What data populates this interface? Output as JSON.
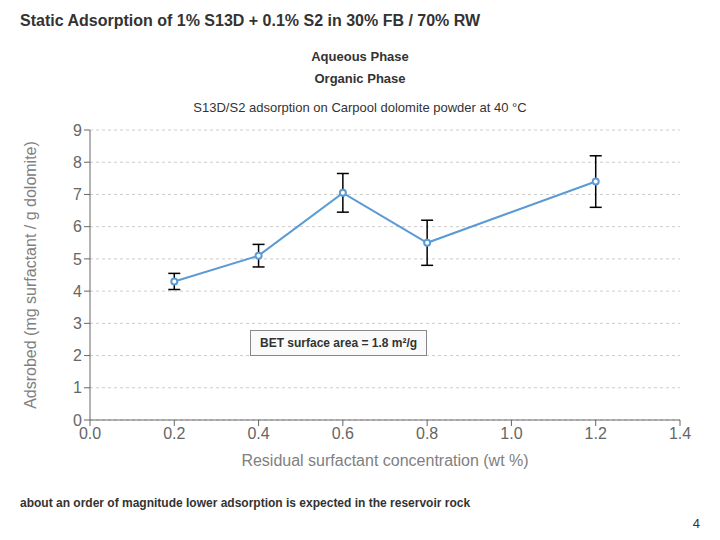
{
  "chart_data": {
    "type": "line",
    "title": "Static Adsorption of 1% S13D + 0.1% S2 in 30% FB / 70% RW",
    "subtitle": "S13D/S2 adsorption on Carpool dolomite powder at 40 °C",
    "x_label": "Residual surfactant concentration (wt %)",
    "y_label": "Adsrobed (mg surfactant / g dolomite)",
    "x": [
      0.2,
      0.4,
      0.6,
      0.8,
      1.2
    ],
    "series": [
      {
        "name": "S13D/S2",
        "color": "#5b9bd5",
        "marker": "circle",
        "line_style": "solid",
        "values": [
          4.3,
          5.1,
          7.05,
          5.5,
          7.4
        ],
        "errors": [
          0.25,
          0.35,
          0.6,
          0.7,
          0.8
        ]
      }
    ],
    "xlim": [
      0,
      1.4
    ],
    "ylim": [
      0,
      9
    ],
    "xticks": [
      {
        "value": 0,
        "label": "0.0"
      },
      0.2,
      0.4,
      0.6,
      0.8,
      {
        "value": 1,
        "label": "1.0"
      },
      1.2,
      1.4
    ],
    "yticks": [
      0,
      1,
      2,
      3,
      4,
      5,
      6,
      7,
      8,
      9
    ],
    "grid": "y",
    "annotations": [
      "Aqueous Phase",
      "Organic Phase",
      "BET surface area = 1.8 m²/g",
      "about an order of magnitude lower adsorption is expected in the reservoir rock",
      "4"
    ]
  }
}
